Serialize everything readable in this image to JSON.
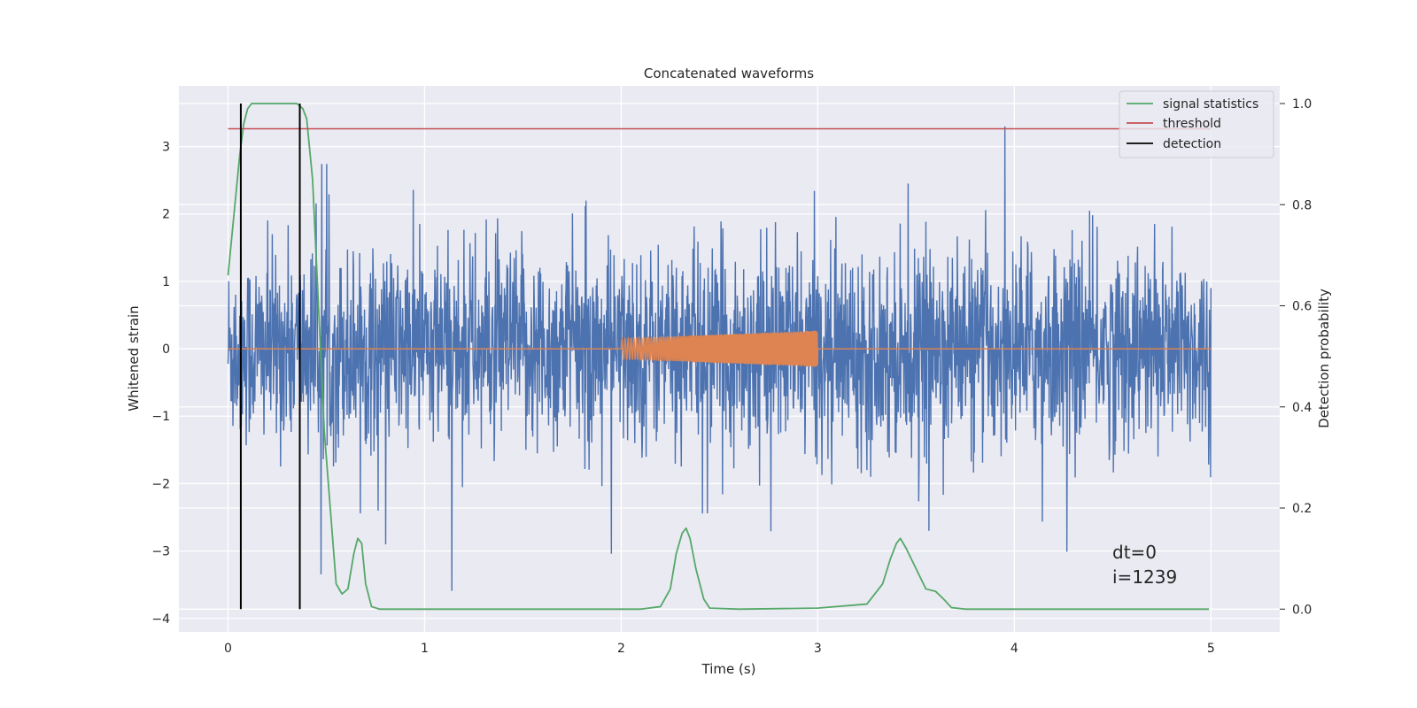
{
  "chart_data": {
    "type": "line",
    "title": "Concatenated waveforms",
    "xlabel": "Time (s)",
    "ylabel": "Whitened strain",
    "y2label": "Detection probability",
    "xlim": [
      -0.25,
      5.35
    ],
    "ylim": [
      -4.2,
      3.9
    ],
    "y2lim": [
      -0.045,
      1.035
    ],
    "grid": true,
    "x_ticks": [
      0,
      1,
      2,
      3,
      4,
      5
    ],
    "y_ticks": [
      -4,
      -3,
      -2,
      -1,
      0,
      1,
      2,
      3
    ],
    "y2_ticks": [
      0.0,
      0.2,
      0.4,
      0.6,
      0.8,
      1.0
    ],
    "x_tick_labels": [
      "0",
      "1",
      "2",
      "3",
      "4",
      "5"
    ],
    "y_tick_labels": [
      "−4",
      "−3",
      "−2",
      "−1",
      "0",
      "1",
      "2",
      "3"
    ],
    "y2_tick_labels": [
      "0.0",
      "0.2",
      "0.4",
      "0.6",
      "0.8",
      "1.0"
    ],
    "legend_position": "top-right",
    "series": [
      {
        "name": "",
        "axis": "left",
        "color": "#4c72b0",
        "kind": "noise",
        "x_range": [
          0,
          5
        ],
        "amplitude_envelope": [
          -4.0,
          3.3
        ]
      },
      {
        "name": "",
        "axis": "left",
        "color": "#dd8452",
        "kind": "chirp",
        "x": [
          0,
          2,
          2,
          3,
          3,
          5
        ],
        "y": [
          0,
          0,
          0.15,
          0.27,
          0,
          0
        ],
        "segment": [
          2,
          3
        ],
        "start_amplitude": 0.15,
        "end_amplitude": 0.27
      },
      {
        "name": "signal statistics",
        "axis": "right",
        "color": "#55a868",
        "x": [
          0,
          0.03,
          0.06,
          0.08,
          0.1,
          0.12,
          0.15,
          0.2,
          0.3,
          0.35,
          0.38,
          0.4,
          0.43,
          0.46,
          0.49,
          0.52,
          0.55,
          0.58,
          0.61,
          0.64,
          0.66,
          0.68,
          0.7,
          0.73,
          0.77,
          1.0,
          1.5,
          2.1,
          2.2,
          2.25,
          2.28,
          2.31,
          2.33,
          2.35,
          2.38,
          2.42,
          2.45,
          2.6,
          3.0,
          3.25,
          3.33,
          3.37,
          3.4,
          3.42,
          3.45,
          3.5,
          3.55,
          3.6,
          3.64,
          3.68,
          3.75,
          4.5,
          4.99
        ],
        "y": [
          0.66,
          0.78,
          0.9,
          0.96,
          0.99,
          1.0,
          1.0,
          1.0,
          1.0,
          1.0,
          0.99,
          0.97,
          0.85,
          0.6,
          0.35,
          0.2,
          0.05,
          0.03,
          0.04,
          0.11,
          0.14,
          0.13,
          0.05,
          0.005,
          0.0,
          0.0,
          0.0,
          0.0,
          0.005,
          0.04,
          0.11,
          0.15,
          0.16,
          0.14,
          0.08,
          0.02,
          0.002,
          0.0,
          0.002,
          0.01,
          0.05,
          0.1,
          0.13,
          0.14,
          0.12,
          0.08,
          0.04,
          0.035,
          0.02,
          0.003,
          0.0,
          0.0,
          0.0
        ]
      },
      {
        "name": "threshold",
        "axis": "right",
        "color": "#c44e52",
        "x": [
          0,
          5
        ],
        "y": [
          0.95,
          0.95
        ]
      },
      {
        "name": "detection",
        "axis": "right",
        "color": "#000000",
        "kind": "vlines",
        "x": [
          0.065,
          0.365
        ],
        "y": [
          0.0,
          1.0
        ]
      }
    ],
    "annotation": {
      "line1": "dt=0",
      "line2": "i=1239",
      "x": 4.5,
      "y": -3.2
    },
    "colors": {
      "plot_background": "#eaeaf2",
      "grid": "#ffffff",
      "text": "#262626"
    }
  }
}
